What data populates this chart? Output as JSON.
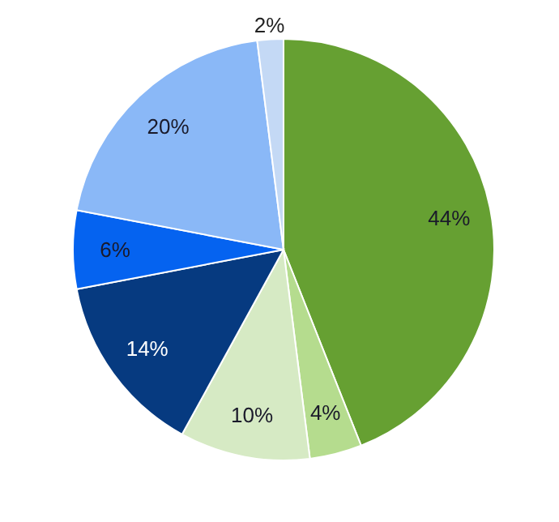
{
  "chart_data": {
    "type": "pie",
    "categories": [
      null,
      null,
      null,
      null,
      null,
      null,
      null
    ],
    "values": [
      44,
      4,
      10,
      14,
      6,
      20,
      2
    ],
    "colors": [
      "#66a032",
      "#b5dc8e",
      "#d6eac4",
      "#063a80",
      "#0563f0",
      "#8ab8f7",
      "#c4d9f5"
    ],
    "value_labels": [
      "44%",
      "4%",
      "10%",
      "14%",
      "6%",
      "20%",
      "2%"
    ],
    "legend": false
  }
}
